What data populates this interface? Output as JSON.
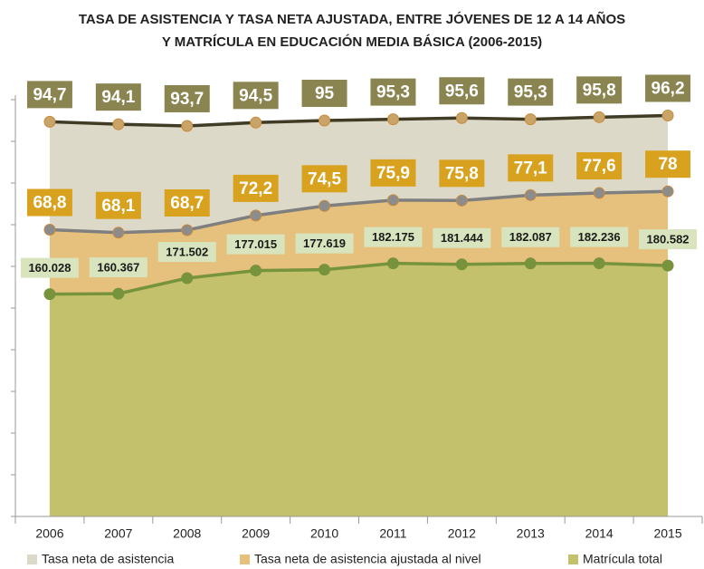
{
  "chart_data": {
    "type": "area-line",
    "title": "TASA DE ASISTENCIA Y TASA NETA AJUSTADA, ENTRE JÓVENES DE 12 A 14 AÑOS",
    "subtitle": "Y MATRÍCULA EN EDUCACIÓN MEDIA BÁSICA (2006-2015)",
    "categories": [
      "2006",
      "2007",
      "2008",
      "2009",
      "2010",
      "2011",
      "2012",
      "2013",
      "2014",
      "2015"
    ],
    "ylim": [
      0,
      100
    ],
    "yticks": [
      0,
      10,
      20,
      30,
      40,
      50,
      60,
      70,
      80,
      90,
      100
    ],
    "y2lim": [
      0,
      300000
    ],
    "legend": "bottom",
    "series": [
      {
        "name": "Tasa neta de asistencia",
        "color": "#ddd9c8",
        "line_color": "#3f3b25",
        "marker_color": "#c9a468",
        "label_color": "#8a8550",
        "label_text": "#ffffff",
        "values": [
          94.7,
          94.1,
          93.7,
          94.5,
          95,
          95.3,
          95.6,
          95.3,
          95.8,
          96.2
        ],
        "value_labels": [
          "94,7",
          "94,1",
          "93,7",
          "94,5",
          "95",
          "95,3",
          "95,6",
          "95,3",
          "95,8",
          "96,2"
        ]
      },
      {
        "name": "Tasa neta de asistencia ajustada al nivel",
        "color": "#e6c17e",
        "line_color": "#7f7f7f",
        "marker_color": "#8c8c8c",
        "label_color": "#d8a21f",
        "label_text": "#ffffff",
        "values": [
          68.8,
          68.1,
          68.7,
          72.2,
          74.5,
          75.9,
          75.8,
          77.1,
          77.6,
          78
        ],
        "value_labels": [
          "68,8",
          "68,1",
          "68,7",
          "72,2",
          "74,5",
          "75,9",
          "75,8",
          "77,1",
          "77,6",
          "78"
        ]
      },
      {
        "name": "Matrícula total",
        "color": "#c3c16c",
        "line_color": "#77933c",
        "marker_color": "#77933c",
        "label_color": "#d7e4bd",
        "label_text": "#1a1a1a",
        "axis": "y2",
        "values": [
          160028,
          160367,
          171502,
          177015,
          177619,
          182175,
          181444,
          182087,
          182236,
          180582
        ],
        "value_labels": [
          "160.028",
          "160.367",
          "171.502",
          "177.015",
          "177.619",
          "182.175",
          "181.444",
          "182.087",
          "182.236",
          "180.582"
        ]
      }
    ]
  }
}
